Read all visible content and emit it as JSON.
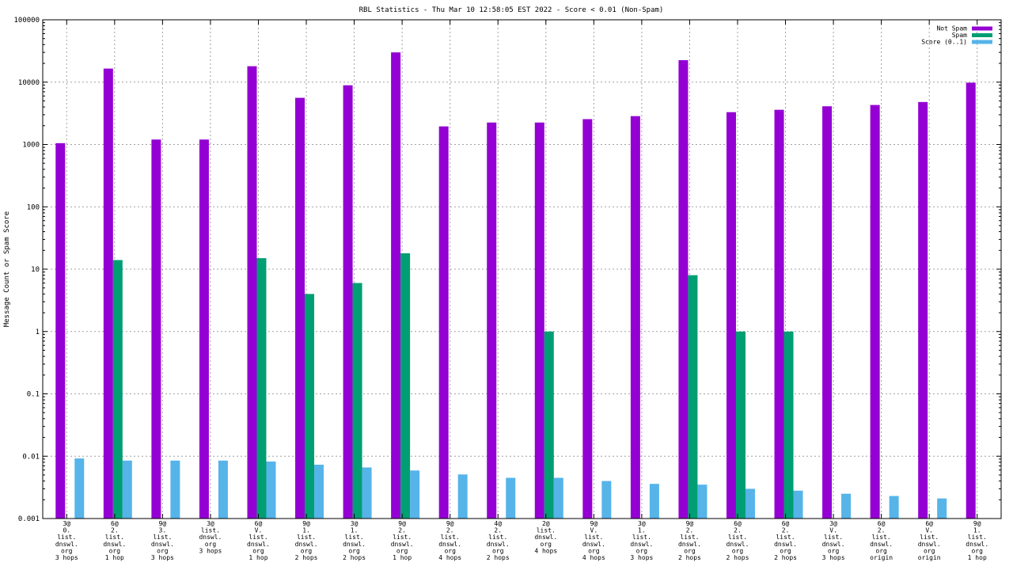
{
  "chart_data": {
    "type": "bar",
    "title": "RBL Statistics - Thu Mar 10 12:58:05 EST 2022 - Score < 0.01 (Non-Spam)",
    "xlabel": "",
    "ylabel": "Message Count or Spam Score",
    "yscale": "log",
    "ylim": [
      0.001,
      100000
    ],
    "yticks": [
      "0.001",
      "0.01",
      "0.1",
      "1",
      "10",
      "100",
      "1000",
      "10000",
      "100000"
    ],
    "grid": true,
    "legend_position": "top-right",
    "categories": [
      [
        "3@",
        "0.",
        "list.",
        "dnswl.",
        "org",
        "3 hops"
      ],
      [
        "6@",
        "2.",
        "list.",
        "dnswl.",
        "org",
        "1 hop"
      ],
      [
        "9@",
        "3.",
        "list.",
        "dnswl.",
        "org",
        "3 hops"
      ],
      [
        "3@",
        "list.",
        "dnswl.",
        "org",
        "3 hops"
      ],
      [
        "6@",
        "V.",
        "list.",
        "dnswl.",
        "org",
        "1 hop"
      ],
      [
        "9@",
        "1.",
        "list.",
        "dnswl.",
        "org",
        "2 hops"
      ],
      [
        "3@",
        "1.",
        "list.",
        "dnswl.",
        "org",
        "2 hops"
      ],
      [
        "9@",
        "2.",
        "list.",
        "dnswl.",
        "org",
        "1 hop"
      ],
      [
        "9@",
        "2.",
        "list.",
        "dnswl.",
        "org",
        "4 hops"
      ],
      [
        "4@",
        "2.",
        "list.",
        "dnswl.",
        "org",
        "2 hops"
      ],
      [
        "2@",
        "list.",
        "dnswl.",
        "org",
        "4 hops"
      ],
      [
        "9@",
        "V.",
        "list.",
        "dnswl.",
        "org",
        "4 hops"
      ],
      [
        "3@",
        "1.",
        "list.",
        "dnswl.",
        "org",
        "3 hops"
      ],
      [
        "9@",
        "2.",
        "list.",
        "dnswl.",
        "org",
        "2 hops"
      ],
      [
        "6@",
        "2.",
        "list.",
        "dnswl.",
        "org",
        "2 hops"
      ],
      [
        "6@",
        "2.",
        "list.",
        "dnswl.",
        "org",
        "2 hops"
      ],
      [
        "3@",
        "V.",
        "list.",
        "dnswl.",
        "org",
        "3 hops"
      ],
      [
        "6@",
        "2.",
        "list.",
        "dnswl.",
        "org",
        "origin"
      ],
      [
        "6@",
        "V.",
        "list.",
        "dnswl.",
        "org",
        "origin"
      ],
      [
        "9@",
        "1.",
        "list.",
        "dnswl.",
        "org",
        "1 hop"
      ]
    ],
    "series": [
      {
        "name": "Not Spam",
        "color": "#9400d3",
        "values": [
          1050,
          16500,
          1200,
          1200,
          18000,
          5600,
          8900,
          30000,
          1950,
          2250,
          2250,
          2550,
          2850,
          22500,
          3300,
          3600,
          4100,
          4300,
          4800,
          9800
        ]
      },
      {
        "name": "Spam",
        "color": "#009e73",
        "values": [
          null,
          14,
          null,
          null,
          15,
          4,
          6,
          18,
          null,
          null,
          1,
          null,
          null,
          8,
          1,
          1,
          null,
          null,
          null,
          null
        ]
      },
      {
        "name": "Score (0..1)",
        "color": "#56b4e9",
        "values": [
          0.0092,
          0.0085,
          0.0085,
          0.0085,
          0.0082,
          0.0073,
          0.0066,
          0.0059,
          0.0051,
          0.0045,
          0.0045,
          0.004,
          0.0036,
          0.0035,
          0.003,
          0.0028,
          0.0025,
          0.0023,
          0.0021,
          0.001
        ]
      }
    ]
  }
}
